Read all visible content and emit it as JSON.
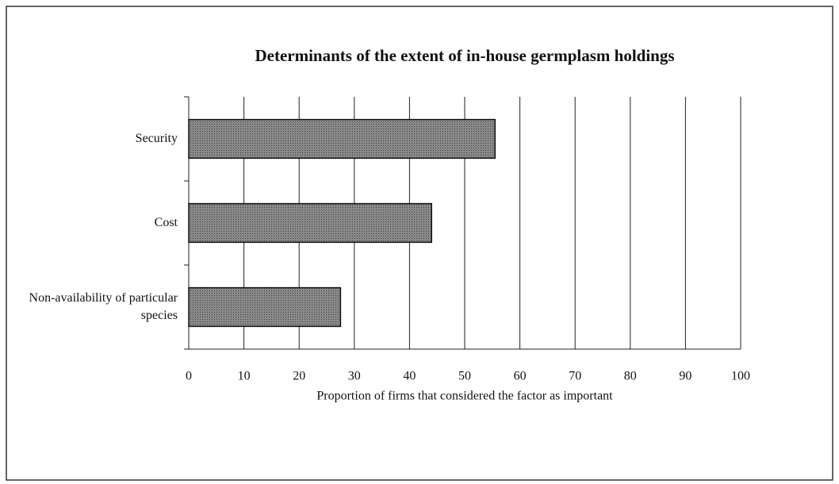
{
  "chart_data": {
    "type": "bar",
    "orientation": "horizontal",
    "title": "Determinants of the extent of in-house germplasm holdings",
    "categories": [
      "Security",
      "Cost",
      "Non-availability of particular species"
    ],
    "values": [
      55.5,
      44,
      27.5
    ],
    "color": "#7a7a7a",
    "xlabel": "Proportion of firms that considered the factor as important",
    "xlim": [
      0,
      100
    ],
    "xticks": [
      0,
      10,
      20,
      30,
      40,
      50,
      60,
      70,
      80,
      90,
      100
    ],
    "grid": true
  }
}
